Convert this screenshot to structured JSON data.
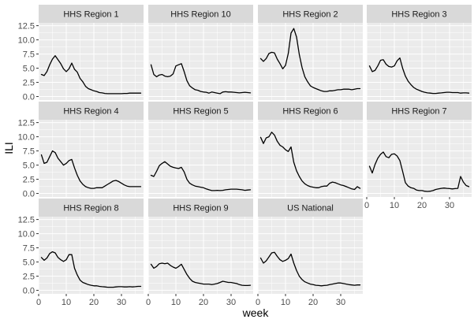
{
  "chart_data": {
    "type": "line",
    "xlabel": "week",
    "ylabel": "ILI",
    "xlim": [
      0,
      38
    ],
    "ylim": [
      -0.62,
      13.0
    ],
    "x_ticks": [
      0,
      10,
      20,
      30
    ],
    "y_ticks": [
      0.0,
      2.5,
      5.0,
      7.5,
      10.0,
      12.5
    ],
    "y_tick_labels": [
      "0.0",
      "2.5",
      "5.0",
      "7.5",
      "10.0",
      "12.5"
    ],
    "x_tick_labels": [
      "0",
      "10",
      "20",
      "30"
    ],
    "grid": true,
    "facet_columns": 4,
    "colors": {
      "panel_background": "#EBEBEB",
      "strip_background": "#D9D9D9",
      "grid": "#FFFFFF",
      "line": "#000000"
    },
    "x": [
      1,
      2,
      3,
      4,
      5,
      6,
      7,
      8,
      9,
      10,
      11,
      12,
      13,
      14,
      15,
      16,
      17,
      18,
      19,
      20,
      21,
      22,
      23,
      24,
      25,
      26,
      27,
      28,
      29,
      30,
      31,
      32,
      33,
      34,
      35,
      36,
      37
    ],
    "series": [
      {
        "name": "HHS Region 1",
        "values": [
          3.9,
          3.7,
          4.4,
          5.6,
          6.6,
          7.2,
          6.5,
          5.8,
          4.9,
          4.4,
          4.9,
          5.9,
          4.8,
          4.3,
          3.2,
          2.6,
          1.8,
          1.4,
          1.2,
          1.0,
          0.9,
          0.7,
          0.65,
          0.55,
          0.5,
          0.5,
          0.5,
          0.5,
          0.5,
          0.5,
          0.55,
          0.55,
          0.6,
          0.6,
          0.6,
          0.6,
          0.6
        ]
      },
      {
        "name": "HHS Region 10",
        "values": [
          5.6,
          3.9,
          3.5,
          3.8,
          3.9,
          3.6,
          3.5,
          3.6,
          4.0,
          5.4,
          5.6,
          5.8,
          4.4,
          2.8,
          1.9,
          1.5,
          1.2,
          1.1,
          0.9,
          0.8,
          0.75,
          0.6,
          0.8,
          0.7,
          0.6,
          0.5,
          0.8,
          0.85,
          0.8,
          0.8,
          0.75,
          0.7,
          0.65,
          0.7,
          0.75,
          0.7,
          0.65
        ]
      },
      {
        "name": "HHS Region 2",
        "values": [
          6.7,
          6.2,
          6.7,
          7.6,
          7.8,
          7.7,
          6.6,
          5.8,
          4.9,
          5.5,
          7.6,
          11.2,
          12.0,
          10.5,
          7.4,
          5.1,
          3.5,
          2.6,
          1.9,
          1.6,
          1.4,
          1.2,
          1.0,
          0.9,
          0.9,
          1.0,
          1.0,
          1.1,
          1.2,
          1.2,
          1.3,
          1.3,
          1.3,
          1.2,
          1.3,
          1.4,
          1.4
        ]
      },
      {
        "name": "HHS Region 3",
        "values": [
          5.4,
          4.4,
          4.6,
          5.4,
          6.4,
          6.5,
          5.7,
          5.3,
          5.2,
          5.4,
          6.3,
          6.8,
          5.0,
          3.6,
          2.7,
          2.1,
          1.6,
          1.3,
          1.1,
          0.9,
          0.75,
          0.65,
          0.6,
          0.55,
          0.55,
          0.6,
          0.65,
          0.7,
          0.75,
          0.75,
          0.7,
          0.7,
          0.7,
          0.6,
          0.65,
          0.65,
          0.6
        ]
      },
      {
        "name": "HHS Region 4",
        "values": [
          6.8,
          5.3,
          5.5,
          6.5,
          7.5,
          7.2,
          6.2,
          5.6,
          5.0,
          5.3,
          5.8,
          6.0,
          4.5,
          3.2,
          2.2,
          1.6,
          1.2,
          1.0,
          0.9,
          0.9,
          1.0,
          1.0,
          1.0,
          1.3,
          1.6,
          1.9,
          2.2,
          2.3,
          2.1,
          1.8,
          1.5,
          1.3,
          1.2,
          1.2,
          1.2,
          1.2,
          1.2
        ]
      },
      {
        "name": "HHS Region 5",
        "values": [
          3.2,
          3.0,
          3.9,
          4.9,
          5.3,
          5.6,
          5.2,
          4.8,
          4.6,
          4.5,
          4.4,
          4.6,
          3.8,
          2.5,
          1.8,
          1.5,
          1.3,
          1.2,
          1.1,
          1.0,
          0.8,
          0.65,
          0.5,
          0.5,
          0.55,
          0.5,
          0.55,
          0.65,
          0.7,
          0.75,
          0.75,
          0.75,
          0.7,
          0.65,
          0.55,
          0.6,
          0.65
        ]
      },
      {
        "name": "HHS Region 6",
        "values": [
          9.9,
          8.8,
          9.8,
          10.0,
          10.8,
          10.3,
          9.2,
          8.5,
          8.2,
          7.7,
          7.4,
          8.2,
          5.5,
          4.0,
          3.0,
          2.2,
          1.7,
          1.4,
          1.2,
          1.1,
          1.0,
          1.0,
          1.2,
          1.3,
          1.3,
          1.8,
          2.0,
          1.9,
          1.7,
          1.5,
          1.4,
          1.2,
          1.0,
          0.8,
          0.7,
          1.2,
          0.9
        ]
      },
      {
        "name": "HHS Region 7",
        "values": [
          4.8,
          3.6,
          5.1,
          6.2,
          6.9,
          7.3,
          6.5,
          6.3,
          6.9,
          7.0,
          6.6,
          5.8,
          3.9,
          1.9,
          1.3,
          1.0,
          0.9,
          0.6,
          0.5,
          0.5,
          0.4,
          0.35,
          0.4,
          0.5,
          0.7,
          0.8,
          0.9,
          0.95,
          0.9,
          0.85,
          0.8,
          0.85,
          0.9,
          3.0,
          2.0,
          1.4,
          1.2
        ]
      },
      {
        "name": "HHS Region 8",
        "values": [
          5.8,
          5.3,
          5.7,
          6.5,
          6.8,
          6.6,
          5.8,
          5.4,
          5.1,
          5.4,
          6.3,
          6.3,
          3.9,
          2.7,
          1.8,
          1.4,
          1.2,
          1.0,
          0.9,
          0.8,
          0.8,
          0.7,
          0.65,
          0.6,
          0.55,
          0.55,
          0.55,
          0.6,
          0.65,
          0.65,
          0.6,
          0.6,
          0.65,
          0.6,
          0.65,
          0.7,
          0.7
        ]
      },
      {
        "name": "HHS Region 9",
        "values": [
          4.6,
          3.9,
          4.2,
          4.7,
          4.8,
          4.7,
          4.8,
          4.4,
          4.1,
          3.9,
          4.2,
          4.6,
          3.7,
          2.8,
          2.1,
          1.6,
          1.4,
          1.3,
          1.2,
          1.1,
          1.1,
          1.1,
          1.0,
          1.1,
          1.2,
          1.4,
          1.6,
          1.5,
          1.4,
          1.4,
          1.3,
          1.2,
          1.0,
          0.9,
          0.85,
          0.85,
          0.9
        ]
      },
      {
        "name": "US National",
        "values": [
          5.7,
          4.8,
          5.2,
          5.9,
          6.6,
          6.7,
          6.0,
          5.4,
          5.1,
          5.3,
          5.6,
          6.4,
          4.8,
          3.5,
          2.5,
          1.9,
          1.5,
          1.3,
          1.1,
          1.0,
          0.9,
          0.85,
          0.8,
          0.85,
          0.9,
          1.0,
          1.1,
          1.2,
          1.3,
          1.3,
          1.2,
          1.1,
          1.0,
          0.95,
          0.9,
          0.95,
          0.95
        ]
      }
    ]
  }
}
